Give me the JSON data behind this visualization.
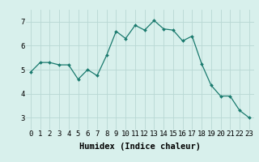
{
  "x": [
    0,
    1,
    2,
    3,
    4,
    5,
    6,
    7,
    8,
    9,
    10,
    11,
    12,
    13,
    14,
    15,
    16,
    17,
    18,
    19,
    20,
    21,
    22,
    23
  ],
  "y": [
    4.9,
    5.3,
    5.3,
    5.2,
    5.2,
    4.6,
    5.0,
    4.75,
    5.6,
    6.6,
    6.3,
    6.85,
    6.65,
    7.05,
    6.7,
    6.65,
    6.2,
    6.4,
    5.25,
    4.35,
    3.9,
    3.9,
    3.3,
    3.0
  ],
  "line_color": "#1a7a6e",
  "marker": "D",
  "marker_size": 2.0,
  "background_color": "#d8f0ec",
  "grid_color": "#b8d8d4",
  "xlabel": "Humidex (Indice chaleur)",
  "xlabel_fontsize": 7.5,
  "tick_fontsize": 6.5,
  "xlim": [
    -0.5,
    23.5
  ],
  "ylim": [
    2.5,
    7.5
  ],
  "yticks": [
    3,
    4,
    5,
    6,
    7
  ],
  "xticks": [
    0,
    1,
    2,
    3,
    4,
    5,
    6,
    7,
    8,
    9,
    10,
    11,
    12,
    13,
    14,
    15,
    16,
    17,
    18,
    19,
    20,
    21,
    22,
    23
  ]
}
